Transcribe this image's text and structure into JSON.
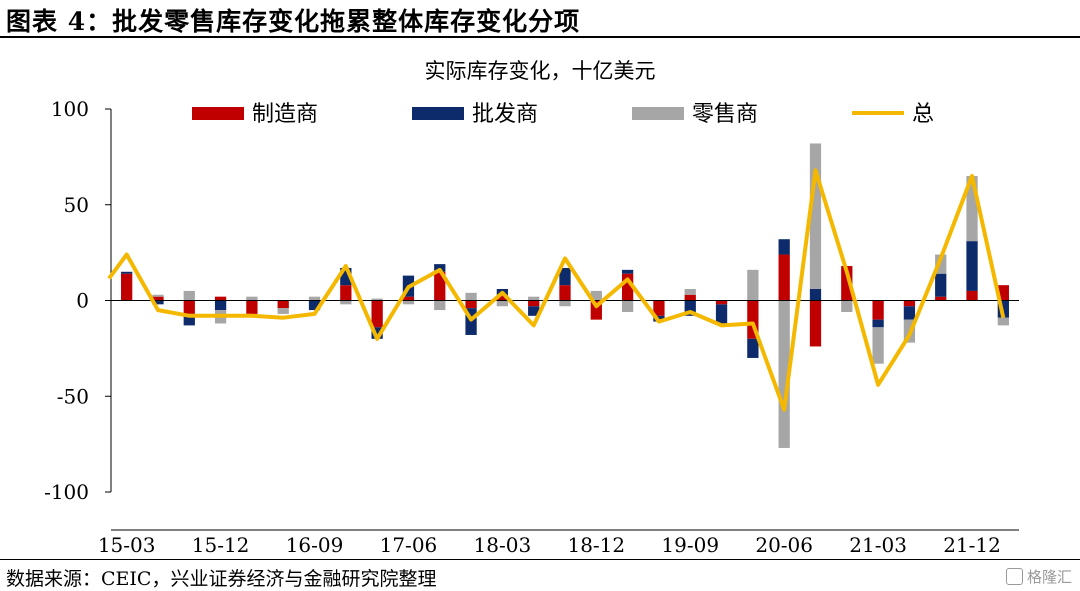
{
  "figure": {
    "title": "图表 4：批发零售库存变化拖累整体库存变化分项",
    "source": "数据来源：CEIC，兴业证券经济与金融研究院整理",
    "watermark": "格隆汇"
  },
  "chart_data": {
    "type": "bar",
    "stacked": true,
    "title": "实际库存变化，十亿美元",
    "xlabel": "",
    "ylabel": "",
    "ylim": [
      -100,
      100
    ],
    "yticks": [
      -100,
      -50,
      0,
      50,
      100
    ],
    "grid": false,
    "legend": "top",
    "categories": [
      "15-03",
      "15-06",
      "15-09",
      "15-12",
      "16-03",
      "16-06",
      "16-09",
      "16-12",
      "17-03",
      "17-06",
      "17-09",
      "17-12",
      "18-03",
      "18-06",
      "18-09",
      "18-12",
      "19-03",
      "19-06",
      "19-09",
      "19-12",
      "20-03",
      "20-06",
      "20-09",
      "20-12",
      "21-03",
      "21-06",
      "21-09",
      "21-12",
      "22-03"
    ],
    "tick_labels": [
      "15-03",
      "15-12",
      "16-09",
      "17-06",
      "18-03",
      "18-12",
      "19-09",
      "20-06",
      "21-03",
      "21-12"
    ],
    "tick_label_indices": [
      0,
      3,
      6,
      9,
      12,
      15,
      18,
      21,
      24,
      27
    ],
    "series": [
      {
        "name": "制造商",
        "kind": "bar",
        "color": "#c00000",
        "values": [
          14,
          2,
          -7,
          2,
          -7,
          -4,
          0,
          8,
          -14,
          2,
          15,
          -4,
          3,
          -3,
          8,
          -10,
          14,
          -8,
          3,
          -2,
          -20,
          24,
          -24,
          18,
          -10,
          -3,
          2,
          5,
          8
        ]
      },
      {
        "name": "批发商",
        "kind": "bar",
        "color": "#0d2a6b",
        "values": [
          1,
          -2,
          -6,
          -5,
          0,
          0,
          -5,
          9,
          -6,
          11,
          4,
          -14,
          3,
          -5,
          9,
          0,
          2,
          -3,
          -8,
          -10,
          -10,
          8,
          6,
          0,
          -4,
          -7,
          12,
          26,
          -9
        ]
      },
      {
        "name": "零售商",
        "kind": "bar",
        "color": "#a6a6a6",
        "values": [
          0,
          1,
          5,
          -7,
          2,
          -3,
          2,
          -2,
          1,
          -2,
          -5,
          4,
          -3,
          2,
          -3,
          5,
          -6,
          0,
          3,
          0,
          16,
          -77,
          76,
          -6,
          -19,
          -12,
          10,
          34,
          -4
        ]
      },
      {
        "name": "总",
        "kind": "line",
        "color": "#f5b800",
        "values": [
          24,
          -5,
          -8,
          -8,
          -8,
          -9,
          -7,
          18,
          -20,
          7,
          16,
          -10,
          4,
          -13,
          22,
          -3,
          11,
          -11,
          -6,
          -13,
          -12,
          -57,
          68,
          15,
          -44,
          -18,
          22,
          65,
          -9
        ]
      }
    ]
  }
}
